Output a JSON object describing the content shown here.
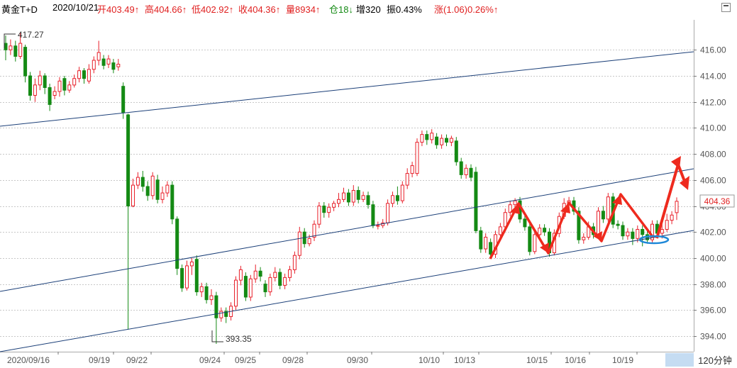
{
  "header": {
    "instrument": "黄金T+D",
    "date": "2020/10/21",
    "open": "开403.49↑",
    "high": "高404.66↑",
    "low": "低402.92↑",
    "close": "收404.36↑",
    "volume": "量8934↑",
    "position": "仓18↓",
    "increase": "增320",
    "amplitude": "振0.43%",
    "change": "涨(1.06)0.26%↑"
  },
  "period": "120分钟",
  "colors": {
    "up": "#e8202a",
    "down": "#148a14",
    "channel": "#1b3f78",
    "grid": "#c8c8c8",
    "arrow": "#ee2a1e",
    "ellipse": "#1e88d8"
  },
  "chart_data": {
    "type": "candlestick",
    "y_axis": {
      "ticks": [
        394,
        396,
        398,
        400,
        402,
        404,
        406,
        408,
        410,
        412,
        414,
        416
      ],
      "labels": [
        "394.00",
        "396.00",
        "398.00",
        "400.00",
        "402.00",
        "404.00",
        "406.00",
        "408.00",
        "410.00",
        "412.00",
        "414.00",
        "416.00"
      ],
      "ylim": [
        392.3,
        418.6
      ]
    },
    "x_axis": {
      "labels": [
        "2020/09/16",
        "09/19",
        "09/22",
        "09/24",
        "09/25",
        "09/28",
        "09/30",
        "10/10",
        "10/13",
        "10/15",
        "10/16",
        "10/19"
      ]
    },
    "annotations": {
      "max_label": "417.27",
      "min_label": "393.35",
      "last_price": "404.36"
    },
    "candles": [
      [
        416.5,
        416.0,
        417.1,
        415.2
      ],
      [
        416.0,
        416.3,
        416.8,
        415.6
      ],
      [
        416.3,
        415.5,
        416.7,
        415.1
      ],
      [
        415.5,
        416.5,
        417.3,
        415.3
      ],
      [
        416.2,
        414.0,
        416.4,
        413.5
      ],
      [
        414.0,
        412.5,
        414.3,
        412.1
      ],
      [
        412.5,
        413.3,
        413.8,
        412.0
      ],
      [
        413.3,
        414.0,
        414.4,
        412.9
      ],
      [
        414.0,
        413.1,
        414.2,
        412.6
      ],
      [
        413.1,
        411.8,
        413.4,
        411.3
      ],
      [
        412.5,
        412.8,
        413.2,
        412.2
      ],
      [
        412.8,
        413.6,
        413.9,
        412.4
      ],
      [
        413.8,
        412.9,
        414.0,
        412.5
      ],
      [
        412.9,
        413.3,
        413.6,
        412.7
      ],
      [
        413.3,
        413.8,
        414.1,
        413.1
      ],
      [
        413.8,
        414.4,
        414.7,
        413.5
      ],
      [
        414.4,
        413.8,
        414.6,
        413.4
      ],
      [
        413.6,
        414.5,
        414.9,
        413.4
      ],
      [
        414.5,
        415.2,
        415.5,
        414.2
      ],
      [
        415.2,
        415.8,
        416.7,
        414.8
      ],
      [
        415.3,
        414.8,
        415.6,
        414.5
      ],
      [
        414.9,
        415.3,
        415.6,
        414.6
      ],
      [
        415.0,
        414.5,
        415.3,
        414.2
      ],
      [
        414.7,
        414.9,
        415.3,
        414.4
      ],
      [
        413.2,
        411.2,
        413.5,
        410.7
      ],
      [
        411.0,
        404.0,
        411.1,
        394.5
      ],
      [
        404.0,
        405.6,
        406.1,
        403.9
      ],
      [
        405.6,
        406.2,
        406.6,
        405.3
      ],
      [
        406.2,
        405.5,
        406.7,
        405.1
      ],
      [
        405.5,
        404.8,
        405.9,
        404.4
      ],
      [
        404.8,
        406.3,
        406.6,
        404.5
      ],
      [
        406.0,
        404.5,
        406.4,
        404.2
      ],
      [
        404.5,
        405.0,
        405.5,
        404.2
      ],
      [
        405.0,
        405.6,
        405.9,
        404.7
      ],
      [
        405.6,
        403.0,
        405.9,
        402.6
      ],
      [
        403.0,
        399.2,
        403.2,
        398.7
      ],
      [
        399.2,
        397.7,
        399.5,
        397.4
      ],
      [
        397.7,
        399.4,
        399.8,
        397.5
      ],
      [
        399.4,
        399.7,
        400.0,
        398.7
      ],
      [
        399.9,
        397.4,
        400.2,
        397.1
      ],
      [
        397.4,
        397.8,
        398.1,
        397.0
      ],
      [
        397.8,
        396.8,
        398.1,
        396.5
      ],
      [
        396.8,
        397.1,
        397.6,
        396.4
      ],
      [
        397.1,
        395.4,
        397.4,
        393.4
      ],
      [
        395.4,
        395.9,
        396.2,
        395.1
      ],
      [
        395.9,
        395.5,
        396.2,
        395.0
      ],
      [
        395.5,
        396.3,
        396.6,
        395.2
      ],
      [
        396.3,
        398.3,
        398.6,
        396.0
      ],
      [
        398.3,
        399.1,
        399.4,
        397.9
      ],
      [
        398.6,
        397.0,
        398.9,
        396.7
      ],
      [
        397.0,
        398.4,
        398.7,
        396.7
      ],
      [
        398.4,
        399.0,
        399.5,
        398.1
      ],
      [
        399.0,
        398.6,
        399.3,
        398.2
      ],
      [
        398.0,
        397.4,
        398.3,
        397.0
      ],
      [
        397.4,
        398.5,
        398.8,
        397.1
      ],
      [
        398.5,
        398.9,
        399.3,
        398.2
      ],
      [
        398.9,
        397.9,
        399.2,
        397.6
      ],
      [
        397.9,
        398.5,
        398.8,
        397.6
      ],
      [
        398.5,
        399.1,
        399.4,
        398.2
      ],
      [
        399.1,
        400.2,
        400.5,
        398.8
      ],
      [
        400.2,
        402.0,
        402.4,
        399.9
      ],
      [
        402.0,
        401.1,
        402.3,
        400.8
      ],
      [
        401.1,
        401.5,
        401.8,
        400.9
      ],
      [
        401.6,
        402.6,
        402.9,
        401.3
      ],
      [
        402.6,
        404.0,
        404.3,
        402.3
      ],
      [
        404.0,
        403.5,
        404.3,
        403.1
      ],
      [
        403.5,
        403.9,
        404.2,
        403.1
      ],
      [
        403.9,
        404.2,
        404.4,
        403.6
      ],
      [
        404.2,
        404.5,
        405.0,
        403.9
      ],
      [
        404.5,
        405.0,
        405.4,
        404.3
      ],
      [
        405.0,
        404.3,
        405.3,
        404.0
      ],
      [
        404.3,
        405.2,
        405.6,
        404.0
      ],
      [
        405.2,
        404.5,
        405.5,
        404.2
      ],
      [
        404.5,
        404.8,
        405.1,
        404.3
      ],
      [
        404.8,
        404.1,
        405.1,
        403.8
      ],
      [
        404.1,
        402.5,
        404.4,
        402.3
      ],
      [
        402.5,
        402.5,
        402.8,
        402.2
      ],
      [
        402.5,
        402.7,
        403.0,
        402.3
      ],
      [
        402.7,
        404.2,
        404.5,
        402.5
      ],
      [
        404.2,
        404.8,
        405.1,
        403.9
      ],
      [
        404.8,
        404.4,
        405.5,
        404.1
      ],
      [
        404.4,
        405.6,
        405.9,
        404.2
      ],
      [
        405.6,
        406.5,
        406.9,
        405.3
      ],
      [
        406.5,
        407.1,
        407.4,
        406.2
      ],
      [
        406.5,
        408.9,
        409.2,
        406.3
      ],
      [
        408.9,
        409.5,
        409.8,
        408.6
      ],
      [
        409.5,
        409.1,
        409.8,
        408.7
      ],
      [
        409.1,
        409.6,
        409.9,
        408.8
      ],
      [
        409.3,
        408.7,
        409.6,
        408.4
      ],
      [
        408.7,
        409.2,
        409.5,
        408.4
      ],
      [
        409.2,
        408.9,
        409.5,
        408.6
      ],
      [
        408.9,
        409.2,
        409.4,
        408.6
      ],
      [
        409.0,
        407.4,
        409.3,
        407.1
      ],
      [
        407.4,
        406.4,
        407.7,
        406.1
      ],
      [
        406.4,
        406.9,
        407.2,
        406.1
      ],
      [
        406.9,
        406.2,
        407.2,
        405.9
      ],
      [
        406.6,
        402.1,
        407.0,
        401.9
      ],
      [
        402.1,
        400.7,
        402.4,
        400.4
      ],
      [
        400.7,
        401.6,
        401.9,
        400.4
      ],
      [
        401.2,
        400.3,
        401.5,
        400.0
      ],
      [
        400.3,
        401.8,
        402.1,
        400.0
      ],
      [
        401.8,
        402.4,
        402.7,
        401.5
      ],
      [
        402.4,
        403.5,
        403.8,
        402.1
      ],
      [
        403.5,
        404.1,
        404.4,
        403.2
      ],
      [
        404.1,
        404.4,
        404.6,
        403.8
      ],
      [
        404.4,
        403.0,
        404.7,
        402.7
      ],
      [
        403.0,
        402.4,
        403.3,
        402.1
      ],
      [
        402.4,
        400.5,
        402.7,
        400.2
      ],
      [
        400.5,
        401.8,
        402.1,
        400.3
      ],
      [
        401.8,
        402.3,
        402.6,
        401.5
      ],
      [
        402.3,
        402.0,
        402.6,
        401.7
      ],
      [
        402.0,
        400.4,
        402.3,
        400.1
      ],
      [
        400.4,
        401.9,
        402.2,
        400.2
      ],
      [
        401.9,
        403.2,
        403.5,
        401.6
      ],
      [
        403.2,
        404.2,
        404.6,
        403.0
      ],
      [
        404.2,
        404.4,
        404.7,
        403.9
      ],
      [
        404.4,
        403.6,
        404.7,
        403.3
      ],
      [
        403.6,
        401.4,
        403.9,
        401.1
      ],
      [
        401.4,
        401.6,
        401.9,
        401.1
      ],
      [
        401.6,
        402.4,
        402.8,
        401.4
      ],
      [
        402.4,
        401.8,
        402.7,
        401.5
      ],
      [
        401.8,
        403.6,
        403.9,
        401.6
      ],
      [
        403.6,
        403.0,
        404.0,
        402.7
      ],
      [
        403.0,
        404.7,
        405.0,
        402.8
      ],
      [
        404.7,
        402.6,
        405.0,
        402.3
      ],
      [
        402.6,
        402.5,
        402.9,
        402.2
      ],
      [
        402.5,
        401.7,
        402.8,
        401.4
      ],
      [
        401.7,
        402.0,
        402.3,
        401.4
      ],
      [
        402.0,
        401.5,
        402.3,
        401.0
      ],
      [
        401.5,
        402.2,
        402.5,
        401.2
      ],
      [
        402.2,
        401.8,
        402.5,
        400.9
      ],
      [
        401.8,
        401.4,
        402.1,
        401.1
      ],
      [
        401.4,
        402.6,
        402.9,
        401.2
      ],
      [
        402.6,
        401.9,
        402.9,
        401.6
      ],
      [
        401.9,
        402.2,
        402.6,
        401.5
      ],
      [
        402.2,
        402.9,
        403.4,
        402.0
      ],
      [
        402.9,
        403.3,
        403.6,
        402.6
      ],
      [
        403.49,
        404.36,
        404.66,
        402.92
      ]
    ]
  }
}
